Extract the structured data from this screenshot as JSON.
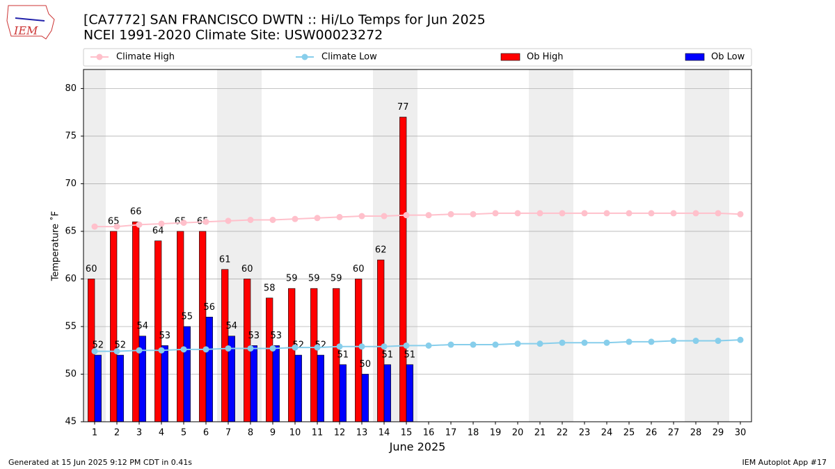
{
  "logo_text": "IEM",
  "chart_data": {
    "type": "bar",
    "title": "[CA7772] SAN FRANCISCO DWTN :: Hi/Lo Temps for Jun 2025",
    "subtitle": "NCEI 1991-2020 Climate Site: USW00023272",
    "y_label": "Temperature ˚F",
    "x_label": "June 2025",
    "categories": [
      1,
      2,
      3,
      4,
      5,
      6,
      7,
      8,
      9,
      10,
      11,
      12,
      13,
      14,
      15,
      16,
      17,
      18,
      19,
      20,
      21,
      22,
      23,
      24,
      25,
      26,
      27,
      28,
      29,
      30
    ],
    "xlim": [
      0.5,
      30.5
    ],
    "ylim": [
      45,
      82
    ],
    "yticks": [
      45,
      50,
      55,
      60,
      65,
      70,
      75,
      80
    ],
    "grid": true,
    "weekend_days": [
      1,
      7,
      8,
      14,
      15,
      21,
      22,
      28,
      29
    ],
    "series": [
      {
        "name": "Climate High",
        "kind": "line",
        "color": "#ffc0cb",
        "values": [
          65.5,
          65.5,
          65.7,
          65.8,
          65.9,
          66.0,
          66.1,
          66.2,
          66.2,
          66.3,
          66.4,
          66.5,
          66.6,
          66.6,
          66.7,
          66.7,
          66.8,
          66.8,
          66.9,
          66.9,
          66.9,
          66.9,
          66.9,
          66.9,
          66.9,
          66.9,
          66.9,
          66.9,
          66.9,
          66.8
        ]
      },
      {
        "name": "Climate Low",
        "kind": "line",
        "color": "#87ceeb",
        "values": [
          52.4,
          52.4,
          52.5,
          52.5,
          52.6,
          52.6,
          52.7,
          52.7,
          52.7,
          52.8,
          52.8,
          52.9,
          52.9,
          52.9,
          53.0,
          53.0,
          53.1,
          53.1,
          53.1,
          53.2,
          53.2,
          53.3,
          53.3,
          53.3,
          53.4,
          53.4,
          53.5,
          53.5,
          53.5,
          53.6
        ]
      },
      {
        "name": "Ob High",
        "kind": "bar",
        "color": "#ff0000",
        "values": [
          60,
          65,
          66,
          64,
          65,
          65,
          61,
          60,
          58,
          59,
          59,
          59,
          60,
          62,
          77,
          null,
          null,
          null,
          null,
          null,
          null,
          null,
          null,
          null,
          null,
          null,
          null,
          null,
          null,
          null
        ]
      },
      {
        "name": "Ob Low",
        "kind": "bar",
        "color": "#0000ff",
        "values": [
          52,
          52,
          54,
          53,
          55,
          56,
          54,
          53,
          53,
          52,
          52,
          51,
          50,
          51,
          51,
          null,
          null,
          null,
          null,
          null,
          null,
          null,
          null,
          null,
          null,
          null,
          null,
          null,
          null,
          null
        ]
      }
    ],
    "legend": "top",
    "footer_left": "Generated at 15 Jun 2025 9:12 PM CDT in 0.41s",
    "footer_right": "IEM Autoplot App #17"
  }
}
